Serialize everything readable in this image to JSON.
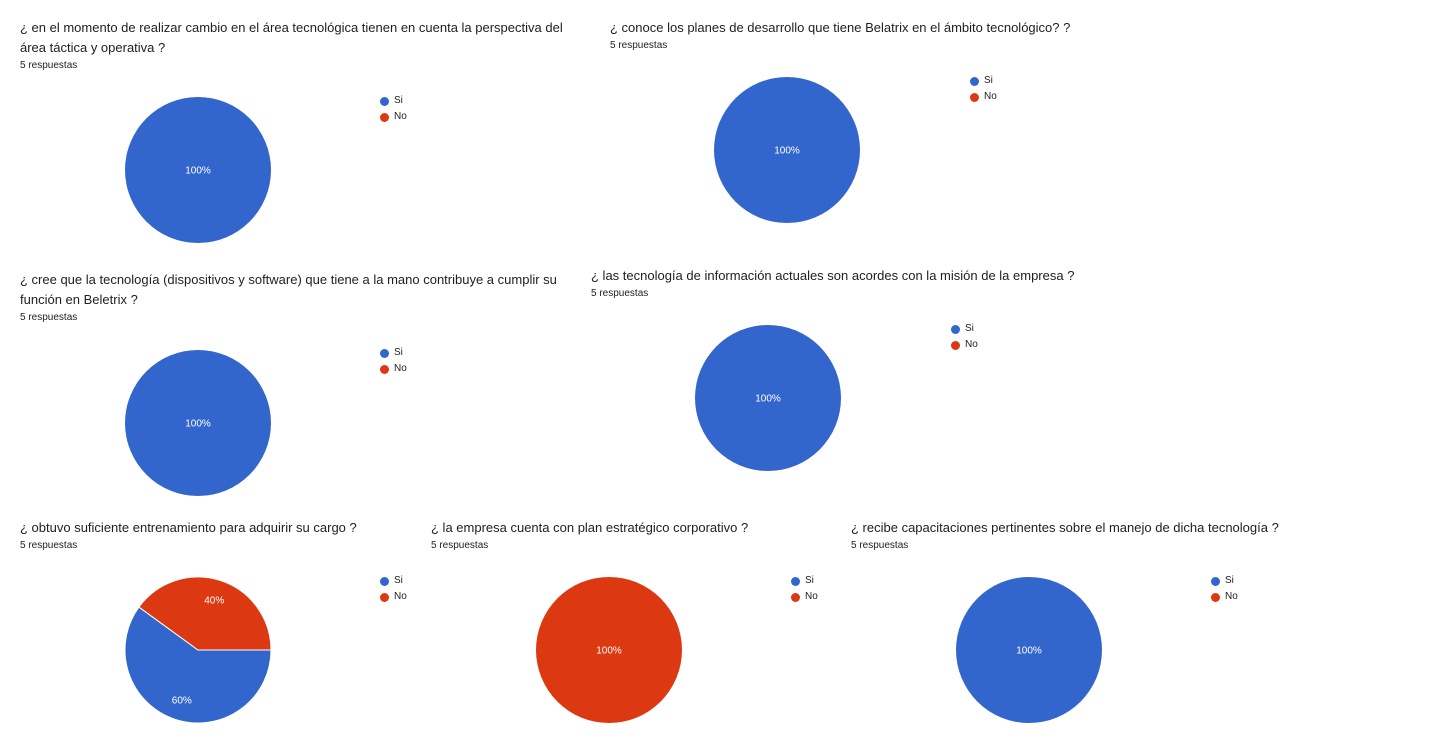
{
  "colors": {
    "si": "#3366cc",
    "no": "#dc3912"
  },
  "chart_data": [
    {
      "type": "pie",
      "title": "¿ en el momento de realizar cambio en el área tecnológica tienen en cuenta la perspectiva del área táctica y operativa ?",
      "subtitle": "5 respuestas",
      "legend_position": "right",
      "slices": [
        {
          "label": "Si",
          "value": 100,
          "display": "100%"
        },
        {
          "label": "No",
          "value": 0,
          "display": ""
        }
      ]
    },
    {
      "type": "pie",
      "title": "¿ conoce los planes de desarrollo que tiene Belatrix en el ámbito tecnológico? ?",
      "subtitle": "5 respuestas",
      "legend_position": "right",
      "slices": [
        {
          "label": "Si",
          "value": 100,
          "display": "100%"
        },
        {
          "label": "No",
          "value": 0,
          "display": ""
        }
      ]
    },
    {
      "type": "pie",
      "title": "¿ cree que la tecnología (dispositivos y software) que tiene a la mano contribuye a cumplir su función en Beletrix ?",
      "subtitle": "5 respuestas",
      "legend_position": "right",
      "slices": [
        {
          "label": "Si",
          "value": 100,
          "display": "100%"
        },
        {
          "label": "No",
          "value": 0,
          "display": ""
        }
      ]
    },
    {
      "type": "pie",
      "title": "¿ las tecnología de información actuales son acordes con la misión de la empresa ?",
      "subtitle": "5 respuestas",
      "legend_position": "right",
      "slices": [
        {
          "label": "Si",
          "value": 100,
          "display": "100%"
        },
        {
          "label": "No",
          "value": 0,
          "display": ""
        }
      ]
    },
    {
      "type": "pie",
      "title": "¿ obtuvo suficiente entrenamiento para adquirir su cargo ?",
      "subtitle": "5 respuestas",
      "legend_position": "right",
      "slices": [
        {
          "label": "Si",
          "value": 60,
          "display": "60%"
        },
        {
          "label": "No",
          "value": 40,
          "display": "40%"
        }
      ]
    },
    {
      "type": "pie",
      "title": "¿ la empresa cuenta con plan estratégico corporativo ?",
      "subtitle": "5 respuestas",
      "legend_position": "right",
      "slices": [
        {
          "label": "Si",
          "value": 0,
          "display": ""
        },
        {
          "label": "No",
          "value": 100,
          "display": "100%"
        }
      ]
    },
    {
      "type": "pie",
      "title": "¿ recibe capacitaciones pertinentes sobre el manejo de dicha tecnología ?",
      "subtitle": "5 respuestas",
      "legend_position": "right",
      "slices": [
        {
          "label": "Si",
          "value": 100,
          "display": "100%"
        },
        {
          "label": "No",
          "value": 0,
          "display": ""
        }
      ]
    }
  ]
}
